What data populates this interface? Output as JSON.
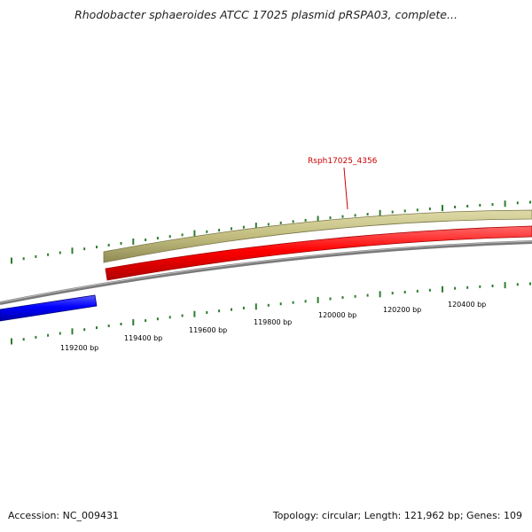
{
  "title": "Rhodobacter sphaeroides ATCC 17025 plasmid pRSPA03, complete...",
  "accession_text": "Accession: NC_009431",
  "summary_text": "Topology: circular; Length: 121,962 bp; Genes: 109",
  "colors": {
    "backbone": "#808080",
    "forward_feature": "#c2bd7e",
    "reverse_feature": "#ff0000",
    "other_feature": "#0000ff",
    "tick": "#2e7d2e",
    "label": "#cc0000"
  },
  "gene_label": {
    "text": "Rsph17025_4356",
    "color": "#cc0000"
  },
  "scale_labels": [
    "119200 bp",
    "119400 bp",
    "119600 bp",
    "119800 bp",
    "120000 bp",
    "120200 bp",
    "120400 bp"
  ],
  "tracks": [
    {
      "name": "forward-feature-track",
      "color": "#c2bd7e"
    },
    {
      "name": "reverse-feature-track",
      "color": "#ff0000"
    },
    {
      "name": "backbone-track",
      "color": "#808080"
    },
    {
      "name": "blue-feature-track",
      "color": "#0000ff"
    }
  ]
}
